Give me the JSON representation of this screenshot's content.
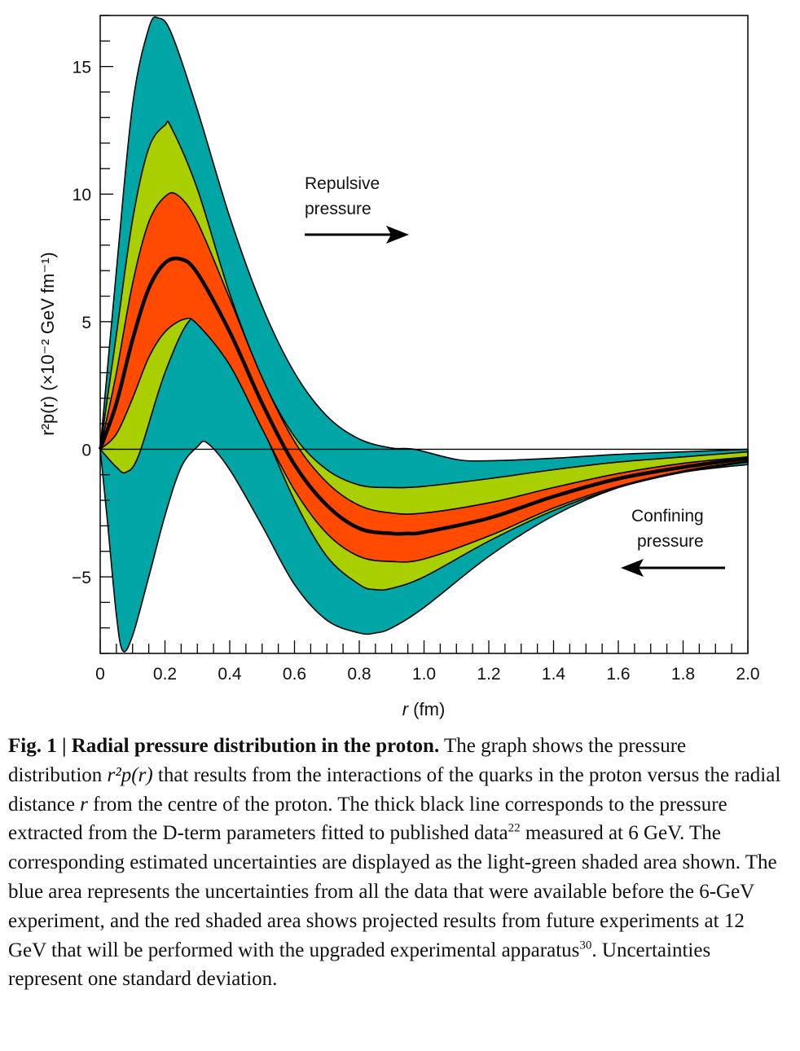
{
  "chart_data": {
    "type": "area",
    "title": "",
    "xlabel": "r (fm)",
    "xlabel_var": "r",
    "xlabel_unit": " (fm)",
    "ylabel": "r²p(r) (×10⁻² GeV fm⁻¹)",
    "xlim": [
      0,
      2.0
    ],
    "ylim": [
      -8,
      17
    ],
    "x_ticks": [
      0,
      0.2,
      0.4,
      0.6,
      0.8,
      1.0,
      1.2,
      1.4,
      1.6,
      1.8,
      2.0
    ],
    "x_tick_labels": [
      "0",
      "0.2",
      "0.4",
      "0.6",
      "0.8",
      "1.0",
      "1.2",
      "1.4",
      "1.6",
      "1.8",
      "2.0"
    ],
    "y_ticks": [
      -5,
      0,
      5,
      10,
      15
    ],
    "y_tick_labels": [
      "−5",
      "0",
      "5",
      "10",
      "15"
    ],
    "grid": false,
    "series": [
      {
        "name": "Data before the 6-GeV experiment (blue band, upper)",
        "color": "#00a6a6",
        "x": [
          0,
          0.05,
          0.1,
          0.15,
          0.18,
          0.22,
          0.3,
          0.4,
          0.5,
          0.6,
          0.7,
          0.8,
          0.9,
          0.97,
          1.1,
          1.2,
          1.4,
          1.6,
          1.8,
          2.0
        ],
        "y": [
          0,
          7.0,
          13.5,
          16.5,
          16.9,
          16.3,
          13.3,
          9.1,
          5.6,
          3.0,
          1.3,
          0.4,
          0.05,
          0.0,
          -0.4,
          -0.45,
          -0.35,
          -0.2,
          -0.1,
          0.0
        ]
      },
      {
        "name": "Data before the 6-GeV experiment (blue band, lower)",
        "color": "#00a6a6",
        "x": [
          0,
          0.02,
          0.05,
          0.07,
          0.1,
          0.15,
          0.2,
          0.25,
          0.3,
          0.33,
          0.4,
          0.5,
          0.6,
          0.7,
          0.8,
          0.85,
          0.9,
          1.0,
          1.2,
          1.4,
          1.6,
          1.8,
          2.0
        ],
        "y": [
          0,
          -2.5,
          -6.5,
          -7.9,
          -7.3,
          -5.0,
          -2.6,
          -0.7,
          0.1,
          0.25,
          -0.8,
          -3.0,
          -5.3,
          -6.7,
          -7.2,
          -7.2,
          -7.0,
          -6.2,
          -4.2,
          -2.6,
          -1.5,
          -0.9,
          -0.6
        ]
      },
      {
        "name": "6 GeV uncertainty (light-green band, upper)",
        "color": "#a9cf00",
        "x": [
          0,
          0.05,
          0.1,
          0.15,
          0.2,
          0.22,
          0.3,
          0.4,
          0.5,
          0.6,
          0.7,
          0.8,
          0.9,
          1.0,
          1.2,
          1.4,
          1.6,
          1.8,
          2.0
        ],
        "y": [
          0,
          4.5,
          9.0,
          11.8,
          12.7,
          12.6,
          10.2,
          6.1,
          2.8,
          0.5,
          -0.8,
          -1.4,
          -1.5,
          -1.45,
          -1.15,
          -0.8,
          -0.5,
          -0.3,
          -0.1
        ]
      },
      {
        "name": "6 GeV uncertainty (light-green band, lower)",
        "color": "#a9cf00",
        "x": [
          0,
          0.05,
          0.08,
          0.12,
          0.2,
          0.28,
          0.35,
          0.4,
          0.5,
          0.6,
          0.7,
          0.8,
          0.85,
          0.9,
          1.0,
          1.2,
          1.4,
          1.6,
          1.8,
          2.0
        ],
        "y": [
          0,
          -0.7,
          -0.9,
          -0.2,
          3.0,
          5.1,
          4.8,
          3.8,
          0.9,
          -2.0,
          -4.2,
          -5.3,
          -5.5,
          -5.45,
          -5.0,
          -3.6,
          -2.4,
          -1.5,
          -0.9,
          -0.5
        ]
      },
      {
        "name": "12 GeV projected results (red band, upper)",
        "color": "#ff4a00",
        "x": [
          0,
          0.05,
          0.1,
          0.15,
          0.2,
          0.24,
          0.3,
          0.4,
          0.5,
          0.6,
          0.7,
          0.8,
          0.9,
          1.0,
          1.2,
          1.4,
          1.6,
          1.8,
          2.0
        ],
        "y": [
          0,
          3.0,
          6.5,
          8.9,
          9.9,
          9.95,
          8.9,
          5.9,
          2.8,
          0.3,
          -1.3,
          -2.2,
          -2.5,
          -2.5,
          -2.1,
          -1.5,
          -0.95,
          -0.55,
          -0.3
        ]
      },
      {
        "name": "12 GeV projected results (red band, lower)",
        "color": "#ff4a00",
        "x": [
          0,
          0.05,
          0.1,
          0.15,
          0.2,
          0.26,
          0.3,
          0.4,
          0.5,
          0.6,
          0.7,
          0.8,
          0.9,
          1.0,
          1.2,
          1.4,
          1.6,
          1.8,
          2.0
        ],
        "y": [
          0,
          0.6,
          2.0,
          3.6,
          4.6,
          5.1,
          4.9,
          3.3,
          0.8,
          -1.6,
          -3.3,
          -4.2,
          -4.4,
          -4.3,
          -3.4,
          -2.3,
          -1.45,
          -0.85,
          -0.45
        ]
      },
      {
        "name": "Pressure from D-term fit to published data (thick black line)",
        "color": "#000000",
        "x": [
          0,
          0.05,
          0.1,
          0.15,
          0.2,
          0.25,
          0.3,
          0.4,
          0.5,
          0.6,
          0.7,
          0.8,
          0.9,
          0.95,
          1.0,
          1.2,
          1.4,
          1.6,
          1.8,
          2.0
        ],
        "y": [
          0,
          1.8,
          4.3,
          6.3,
          7.3,
          7.45,
          6.9,
          4.6,
          1.8,
          -0.6,
          -2.2,
          -3.1,
          -3.3,
          -3.3,
          -3.25,
          -2.7,
          -1.85,
          -1.15,
          -0.7,
          -0.35
        ]
      }
    ],
    "annotations": [
      {
        "text_lines": [
          "Repulsive",
          "pressure"
        ],
        "arrow": "right"
      },
      {
        "text_lines": [
          "Confining",
          "pressure"
        ],
        "arrow": "left"
      }
    ]
  },
  "caption": {
    "label": "Fig. 1 | Radial pressure distribution in the proton.",
    "part1": " The graph shows the pressure distribution ",
    "formula": "r²p(r)",
    "part2": " that results from the interactions of the quarks in the proton versus the radial distance ",
    "var_r": "r",
    "part3": " from the centre of the proton. The thick black line corresponds to the pressure extracted from the D-term parameters fitted to published data",
    "ref1": "22",
    "part4": " measured at 6 GeV. The corresponding estimated uncertainties are displayed as the light-green shaded area shown. The blue area represents the uncertainties from all the data that were available before the 6-GeV experiment, and the red shaded area shows projected results from future experiments at 12 GeV that will be performed with the upgraded experimental apparatus",
    "ref2": "30",
    "part5": ". Uncertainties represent one standard deviation."
  }
}
